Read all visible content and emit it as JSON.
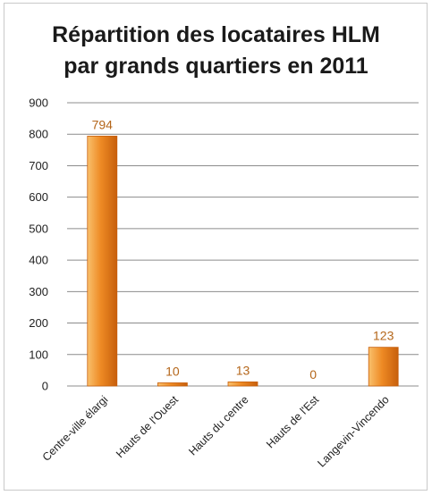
{
  "chart_data": {
    "type": "bar",
    "title_lines": [
      "Répartition des locataires HLM",
      "par grands quartiers en 2011"
    ],
    "categories": [
      "Centre-ville élargi",
      "Hauts de l'Ouest",
      "Hauts du centre",
      "Hauts de l'Est",
      "Langevin-Vincendo"
    ],
    "values": [
      794,
      10,
      13,
      0,
      123
    ],
    "data_labels": [
      "794",
      "10",
      "13",
      "0",
      "123"
    ],
    "ylim": [
      0,
      900
    ],
    "yticks": [
      "0",
      "100",
      "200",
      "300",
      "400",
      "500",
      "600",
      "700",
      "800",
      "900"
    ],
    "grid": true,
    "legend": "none",
    "colors": {
      "bar_light": "#f9c06c",
      "bar_mid": "#ee8a24",
      "bar_dark": "#c75f0c",
      "label": "#b4661a",
      "grid": "#8c8c8c"
    }
  }
}
